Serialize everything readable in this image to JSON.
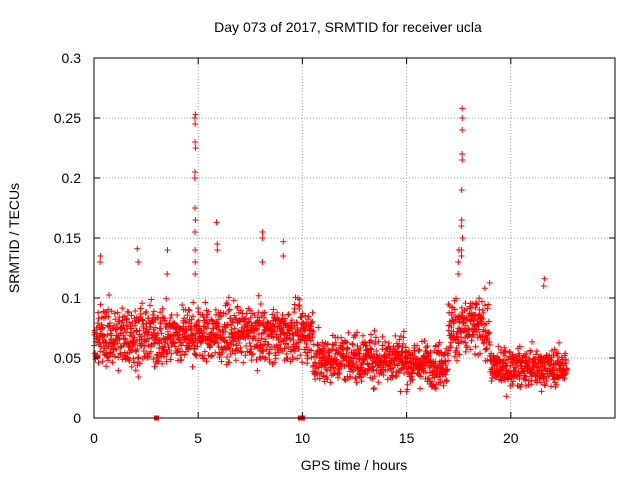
{
  "chart_data": {
    "type": "scatter",
    "title": "Day 073 of 2017, SRMTID for receiver ucla",
    "xlabel": "GPS time / hours",
    "ylabel": "SRMTID / TECUs",
    "xlim": [
      0,
      25
    ],
    "ylim": [
      0,
      0.3
    ],
    "xticks": [
      0,
      5,
      10,
      15,
      20
    ],
    "xtick_labels": [
      "0",
      "5",
      "10",
      "15",
      "20"
    ],
    "yticks": [
      0,
      0.05,
      0.1,
      0.15,
      0.2,
      0.25,
      0.3
    ],
    "ytick_labels": [
      "0",
      "0.05",
      "0.1",
      "0.15",
      "0.2",
      "0.25",
      "0.3"
    ],
    "grid": true,
    "marker": "+",
    "color": "#ff0000",
    "x_range_hours": [
      0,
      22.7
    ],
    "baseline_segments": [
      {
        "name": "baseline-mean-0-4",
        "x": [
          0.0,
          4.2
        ],
        "mean": 0.068,
        "spread": 0.025
      },
      {
        "name": "baseline-mean-4-10",
        "x": [
          4.2,
          10.5
        ],
        "mean": 0.07,
        "spread": 0.022
      },
      {
        "name": "baseline-mean-10-15",
        "x": [
          10.5,
          15.0
        ],
        "mean": 0.05,
        "spread": 0.02
      },
      {
        "name": "baseline-mean-15-17",
        "x": [
          15.0,
          17.0
        ],
        "mean": 0.045,
        "spread": 0.018
      },
      {
        "name": "baseline-mean-17-19",
        "x": [
          17.0,
          19.0
        ],
        "mean": 0.075,
        "spread": 0.025
      },
      {
        "name": "baseline-mean-19-22.7",
        "x": [
          19.0,
          22.7
        ],
        "mean": 0.042,
        "spread": 0.015
      }
    ],
    "spikes": [
      {
        "x": 4.85,
        "values": [
          0.253,
          0.25,
          0.245,
          0.23,
          0.225,
          0.205,
          0.2,
          0.175,
          0.165,
          0.155,
          0.14,
          0.13,
          0.12
        ]
      },
      {
        "x": 17.65,
        "values": [
          0.258,
          0.25,
          0.24,
          0.22,
          0.215,
          0.19,
          0.165,
          0.16,
          0.15,
          0.14,
          0.135
        ]
      },
      {
        "x": 17.5,
        "values": [
          0.14,
          0.13,
          0.12
        ]
      },
      {
        "x": 5.9,
        "values": [
          0.163,
          0.145,
          0.14
        ]
      },
      {
        "x": 8.1,
        "values": [
          0.155,
          0.15,
          0.13
        ]
      },
      {
        "x": 9.1,
        "values": [
          0.147,
          0.135
        ]
      },
      {
        "x": 2.1,
        "values": [
          0.141,
          0.13
        ]
      },
      {
        "x": 3.5,
        "values": [
          0.14,
          0.12
        ]
      },
      {
        "x": 0.3,
        "values": [
          0.135,
          0.13
        ]
      },
      {
        "x": 21.6,
        "values": [
          0.116,
          0.11
        ]
      }
    ],
    "zero_markers_x": [
      3.0,
      9.9,
      10.0
    ]
  }
}
